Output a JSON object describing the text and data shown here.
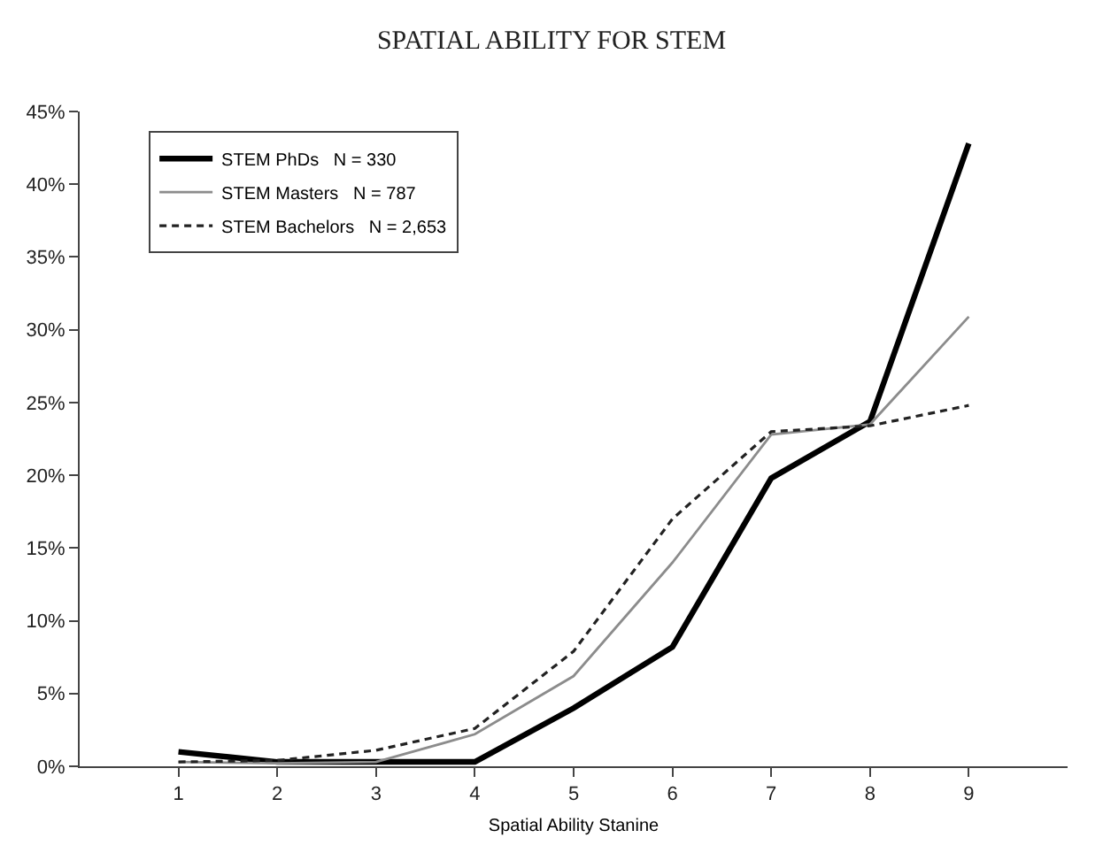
{
  "chart_data": {
    "type": "line",
    "title": "SPATIAL ABILITY FOR STEM",
    "xlabel": "Spatial Ability Stanine",
    "x": [
      1,
      2,
      3,
      4,
      5,
      6,
      7,
      8,
      9
    ],
    "series": [
      {
        "name": "STEM PhDs   N = 330",
        "color": "#000000",
        "line_style": "solid",
        "values": [
          1.0,
          0.3,
          0.3,
          0.3,
          4.0,
          8.2,
          19.8,
          23.7,
          42.8
        ]
      },
      {
        "name": "STEM Masters   N = 787",
        "color": "#8c8c8c",
        "line_style": "solid",
        "values": [
          0.3,
          0.2,
          0.3,
          2.2,
          6.2,
          14.0,
          22.8,
          23.5,
          30.9
        ]
      },
      {
        "name": "STEM Bachelors   N = 2,653",
        "color": "#222222",
        "line_style": "dashed",
        "values": [
          0.3,
          0.4,
          1.1,
          2.6,
          7.9,
          17.0,
          23.0,
          23.4,
          24.8
        ]
      }
    ],
    "xlim": [
      0,
      10
    ],
    "xticks": [
      1,
      2,
      3,
      4,
      5,
      6,
      7,
      8,
      9
    ],
    "ylim": [
      0,
      45
    ],
    "yticks": [
      {
        "value": 0,
        "label": "0%"
      },
      {
        "value": 5,
        "label": "5%"
      },
      {
        "value": 10,
        "label": "10%"
      },
      {
        "value": 15,
        "label": "15%"
      },
      {
        "value": 20,
        "label": "20%"
      },
      {
        "value": 25,
        "label": "25%"
      },
      {
        "value": 30,
        "label": "30%"
      },
      {
        "value": 35,
        "label": "35%"
      },
      {
        "value": 40,
        "label": "40%"
      },
      {
        "value": 45,
        "label": "45%"
      }
    ],
    "legend": "top left",
    "marker": "none"
  }
}
